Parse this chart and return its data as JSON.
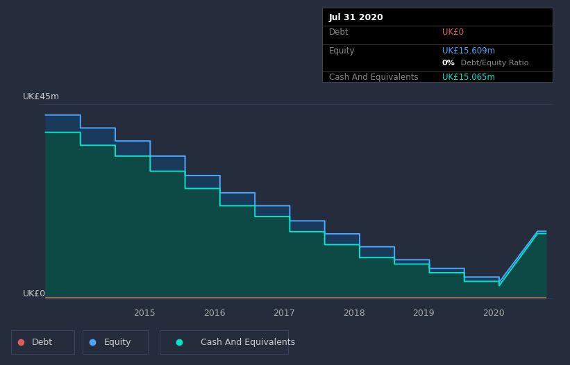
{
  "bg_color": "#252d3d",
  "plot_bg_color": "#252d3d",
  "title_box": {
    "date": "Jul 31 2020",
    "debt_label": "Debt",
    "debt_value": "UK£0",
    "debt_color": "#e05c5c",
    "equity_label": "Equity",
    "equity_value": "UK£15.609m",
    "equity_color": "#4da6ff",
    "ratio_text": " Debt/Equity Ratio",
    "ratio_pct": "0%",
    "cash_label": "Cash And Equivalents",
    "cash_value": "UK£15.065m",
    "cash_color": "#00e5cc",
    "box_bg": "#000000",
    "label_color": "#888888",
    "border_color": "#444444"
  },
  "ylabel_top": "UK£45m",
  "ylabel_bottom": "UK£0",
  "x_ticks": [
    "2015",
    "2016",
    "2017",
    "2018",
    "2019",
    "2020"
  ],
  "equity_line_color": "#4da6ff",
  "cash_line_color": "#00e5cc",
  "debt_line_color": "#e05c5c",
  "grid_color": "#303a50",
  "legend_border": "#3a4260",
  "equity_data": {
    "x": [
      2013.58,
      2014.08,
      2014.08,
      2014.58,
      2014.58,
      2015.08,
      2015.08,
      2015.58,
      2015.58,
      2016.08,
      2016.08,
      2016.58,
      2016.58,
      2017.08,
      2017.08,
      2017.58,
      2017.58,
      2018.08,
      2018.08,
      2018.58,
      2018.58,
      2019.08,
      2019.08,
      2019.58,
      2019.58,
      2020.08,
      2020.08,
      2020.63,
      2020.75
    ],
    "y": [
      42.5,
      42.5,
      39.5,
      39.5,
      36.5,
      36.5,
      33.0,
      33.0,
      28.5,
      28.5,
      24.5,
      24.5,
      21.5,
      21.5,
      18.0,
      18.0,
      15.0,
      15.0,
      12.0,
      12.0,
      9.0,
      9.0,
      7.0,
      7.0,
      5.0,
      5.0,
      3.8,
      15.6,
      15.6
    ]
  },
  "cash_data": {
    "x": [
      2013.58,
      2014.08,
      2014.08,
      2014.58,
      2014.58,
      2015.08,
      2015.08,
      2015.58,
      2015.58,
      2016.08,
      2016.08,
      2016.58,
      2016.58,
      2017.08,
      2017.08,
      2017.58,
      2017.58,
      2018.08,
      2018.08,
      2018.58,
      2018.58,
      2019.08,
      2019.08,
      2019.58,
      2019.58,
      2020.08,
      2020.08,
      2020.63,
      2020.75
    ],
    "y": [
      38.5,
      38.5,
      35.5,
      35.5,
      33.0,
      33.0,
      29.5,
      29.5,
      25.5,
      25.5,
      21.5,
      21.5,
      19.0,
      19.0,
      15.5,
      15.5,
      12.5,
      12.5,
      9.5,
      9.5,
      8.0,
      8.0,
      6.0,
      6.0,
      4.0,
      4.0,
      3.0,
      15.065,
      15.065
    ]
  },
  "debt_data": {
    "x": [
      2013.58,
      2020.75
    ],
    "y": [
      0.15,
      0.15
    ]
  },
  "ylim": [
    -1,
    48
  ],
  "xlim": [
    2013.5,
    2020.85
  ]
}
